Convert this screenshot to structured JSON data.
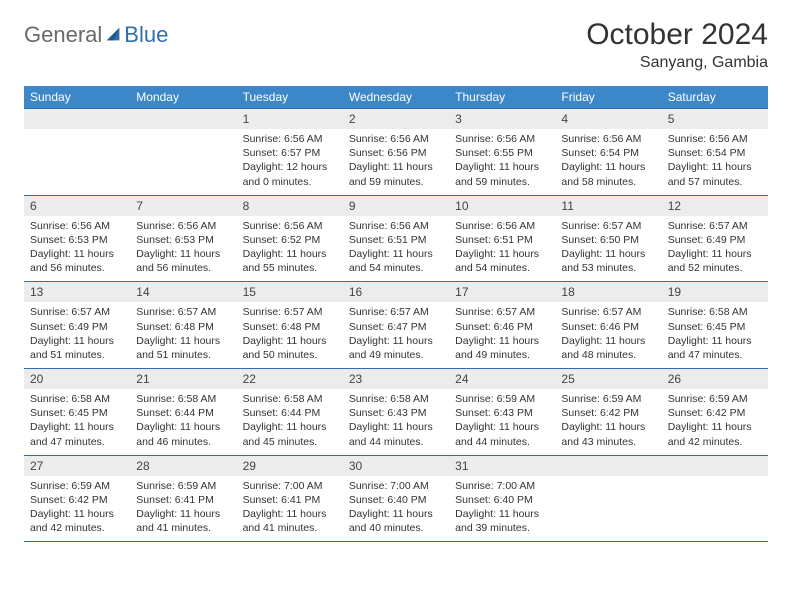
{
  "logo": {
    "general": "General",
    "blue": "Blue"
  },
  "title": "October 2024",
  "location": "Sanyang, Gambia",
  "weekdays": [
    "Sunday",
    "Monday",
    "Tuesday",
    "Wednesday",
    "Thursday",
    "Friday",
    "Saturday"
  ],
  "colors": {
    "header_bar": "#3b87c8",
    "row_divider": "#2f6fb0",
    "daynum_bg": "#ececec",
    "logo_blue": "#2f6fb0",
    "logo_gray": "#6a6a6a"
  },
  "weeks": [
    [
      {
        "day": "",
        "sunrise": "",
        "sunset": "",
        "daylight": ""
      },
      {
        "day": "",
        "sunrise": "",
        "sunset": "",
        "daylight": ""
      },
      {
        "day": "1",
        "sunrise": "Sunrise: 6:56 AM",
        "sunset": "Sunset: 6:57 PM",
        "daylight": "Daylight: 12 hours and 0 minutes."
      },
      {
        "day": "2",
        "sunrise": "Sunrise: 6:56 AM",
        "sunset": "Sunset: 6:56 PM",
        "daylight": "Daylight: 11 hours and 59 minutes."
      },
      {
        "day": "3",
        "sunrise": "Sunrise: 6:56 AM",
        "sunset": "Sunset: 6:55 PM",
        "daylight": "Daylight: 11 hours and 59 minutes."
      },
      {
        "day": "4",
        "sunrise": "Sunrise: 6:56 AM",
        "sunset": "Sunset: 6:54 PM",
        "daylight": "Daylight: 11 hours and 58 minutes."
      },
      {
        "day": "5",
        "sunrise": "Sunrise: 6:56 AM",
        "sunset": "Sunset: 6:54 PM",
        "daylight": "Daylight: 11 hours and 57 minutes."
      }
    ],
    [
      {
        "day": "6",
        "sunrise": "Sunrise: 6:56 AM",
        "sunset": "Sunset: 6:53 PM",
        "daylight": "Daylight: 11 hours and 56 minutes."
      },
      {
        "day": "7",
        "sunrise": "Sunrise: 6:56 AM",
        "sunset": "Sunset: 6:53 PM",
        "daylight": "Daylight: 11 hours and 56 minutes."
      },
      {
        "day": "8",
        "sunrise": "Sunrise: 6:56 AM",
        "sunset": "Sunset: 6:52 PM",
        "daylight": "Daylight: 11 hours and 55 minutes."
      },
      {
        "day": "9",
        "sunrise": "Sunrise: 6:56 AM",
        "sunset": "Sunset: 6:51 PM",
        "daylight": "Daylight: 11 hours and 54 minutes."
      },
      {
        "day": "10",
        "sunrise": "Sunrise: 6:56 AM",
        "sunset": "Sunset: 6:51 PM",
        "daylight": "Daylight: 11 hours and 54 minutes."
      },
      {
        "day": "11",
        "sunrise": "Sunrise: 6:57 AM",
        "sunset": "Sunset: 6:50 PM",
        "daylight": "Daylight: 11 hours and 53 minutes."
      },
      {
        "day": "12",
        "sunrise": "Sunrise: 6:57 AM",
        "sunset": "Sunset: 6:49 PM",
        "daylight": "Daylight: 11 hours and 52 minutes."
      }
    ],
    [
      {
        "day": "13",
        "sunrise": "Sunrise: 6:57 AM",
        "sunset": "Sunset: 6:49 PM",
        "daylight": "Daylight: 11 hours and 51 minutes."
      },
      {
        "day": "14",
        "sunrise": "Sunrise: 6:57 AM",
        "sunset": "Sunset: 6:48 PM",
        "daylight": "Daylight: 11 hours and 51 minutes."
      },
      {
        "day": "15",
        "sunrise": "Sunrise: 6:57 AM",
        "sunset": "Sunset: 6:48 PM",
        "daylight": "Daylight: 11 hours and 50 minutes."
      },
      {
        "day": "16",
        "sunrise": "Sunrise: 6:57 AM",
        "sunset": "Sunset: 6:47 PM",
        "daylight": "Daylight: 11 hours and 49 minutes."
      },
      {
        "day": "17",
        "sunrise": "Sunrise: 6:57 AM",
        "sunset": "Sunset: 6:46 PM",
        "daylight": "Daylight: 11 hours and 49 minutes."
      },
      {
        "day": "18",
        "sunrise": "Sunrise: 6:57 AM",
        "sunset": "Sunset: 6:46 PM",
        "daylight": "Daylight: 11 hours and 48 minutes."
      },
      {
        "day": "19",
        "sunrise": "Sunrise: 6:58 AM",
        "sunset": "Sunset: 6:45 PM",
        "daylight": "Daylight: 11 hours and 47 minutes."
      }
    ],
    [
      {
        "day": "20",
        "sunrise": "Sunrise: 6:58 AM",
        "sunset": "Sunset: 6:45 PM",
        "daylight": "Daylight: 11 hours and 47 minutes."
      },
      {
        "day": "21",
        "sunrise": "Sunrise: 6:58 AM",
        "sunset": "Sunset: 6:44 PM",
        "daylight": "Daylight: 11 hours and 46 minutes."
      },
      {
        "day": "22",
        "sunrise": "Sunrise: 6:58 AM",
        "sunset": "Sunset: 6:44 PM",
        "daylight": "Daylight: 11 hours and 45 minutes."
      },
      {
        "day": "23",
        "sunrise": "Sunrise: 6:58 AM",
        "sunset": "Sunset: 6:43 PM",
        "daylight": "Daylight: 11 hours and 44 minutes."
      },
      {
        "day": "24",
        "sunrise": "Sunrise: 6:59 AM",
        "sunset": "Sunset: 6:43 PM",
        "daylight": "Daylight: 11 hours and 44 minutes."
      },
      {
        "day": "25",
        "sunrise": "Sunrise: 6:59 AM",
        "sunset": "Sunset: 6:42 PM",
        "daylight": "Daylight: 11 hours and 43 minutes."
      },
      {
        "day": "26",
        "sunrise": "Sunrise: 6:59 AM",
        "sunset": "Sunset: 6:42 PM",
        "daylight": "Daylight: 11 hours and 42 minutes."
      }
    ],
    [
      {
        "day": "27",
        "sunrise": "Sunrise: 6:59 AM",
        "sunset": "Sunset: 6:42 PM",
        "daylight": "Daylight: 11 hours and 42 minutes."
      },
      {
        "day": "28",
        "sunrise": "Sunrise: 6:59 AM",
        "sunset": "Sunset: 6:41 PM",
        "daylight": "Daylight: 11 hours and 41 minutes."
      },
      {
        "day": "29",
        "sunrise": "Sunrise: 7:00 AM",
        "sunset": "Sunset: 6:41 PM",
        "daylight": "Daylight: 11 hours and 41 minutes."
      },
      {
        "day": "30",
        "sunrise": "Sunrise: 7:00 AM",
        "sunset": "Sunset: 6:40 PM",
        "daylight": "Daylight: 11 hours and 40 minutes."
      },
      {
        "day": "31",
        "sunrise": "Sunrise: 7:00 AM",
        "sunset": "Sunset: 6:40 PM",
        "daylight": "Daylight: 11 hours and 39 minutes."
      },
      {
        "day": "",
        "sunrise": "",
        "sunset": "",
        "daylight": ""
      },
      {
        "day": "",
        "sunrise": "",
        "sunset": "",
        "daylight": ""
      }
    ]
  ]
}
